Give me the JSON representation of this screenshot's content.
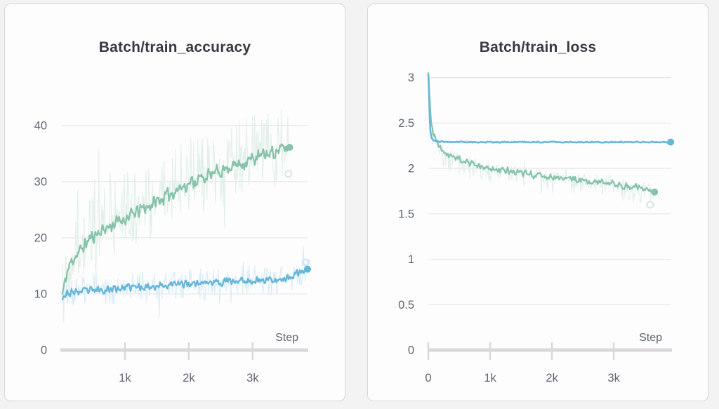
{
  "page": {
    "background": "#f3f3f4",
    "panel_background": "#fdfdfe",
    "panel_border": "#d7d7d9"
  },
  "chart_data": [
    {
      "type": "line",
      "title": "Batch/train_accuracy",
      "xlabel": "Step",
      "ylabel": "",
      "legend": "none",
      "grid": true,
      "x_range": [
        0,
        3860
      ],
      "y_range": [
        0,
        49.6
      ],
      "x_ticks": [
        {
          "value": 1000,
          "label": "1k"
        },
        {
          "value": 2000,
          "label": "2k"
        },
        {
          "value": 3000,
          "label": "3k"
        }
      ],
      "y_ticks": [
        {
          "value": 0,
          "label": "0",
          "grid": false
        },
        {
          "value": 10,
          "label": "10",
          "grid": true
        },
        {
          "value": 20,
          "label": "20",
          "grid": true
        },
        {
          "value": 30,
          "label": "30",
          "grid": true
        },
        {
          "value": 40,
          "label": "40",
          "grid": true
        }
      ],
      "axis_color": "#d9d9db",
      "grid_color": "#e7e7e9",
      "tick_label_color": "#5f6570",
      "series": [
        {
          "id": "green-run",
          "color": "#86c3aa",
          "raw_color": "#e2f0e9",
          "ghost_color": "#cde7da",
          "seed": 11,
          "x_start": 20,
          "x_end": 3580,
          "smooth_jitter": 1.5,
          "raw_jitter": 6.5,
          "raw_bias_up": 1.25,
          "raw_bias_down": 1.0,
          "line_width": 2.3,
          "end_dot": true,
          "ghost_dot": {
            "step": 3560,
            "value": 31.4
          },
          "smoothed": [
            [
              20,
              9.8
            ],
            [
              60,
              12
            ],
            [
              100,
              14
            ],
            [
              150,
              15.5
            ],
            [
              200,
              16.5
            ],
            [
              275,
              17.3
            ],
            [
              350,
              18.5
            ],
            [
              450,
              19.8
            ],
            [
              550,
              20.7
            ],
            [
              650,
              21.4
            ],
            [
              750,
              22
            ],
            [
              850,
              22.6
            ],
            [
              950,
              23.2
            ],
            [
              1050,
              23.7
            ],
            [
              1150,
              24.3
            ],
            [
              1250,
              25
            ],
            [
              1350,
              25.5
            ],
            [
              1450,
              26.2
            ],
            [
              1550,
              26.8
            ],
            [
              1650,
              27.4
            ],
            [
              1750,
              28.2
            ],
            [
              1850,
              28.8
            ],
            [
              1950,
              29.4
            ],
            [
              2050,
              30
            ],
            [
              2150,
              30.4
            ],
            [
              2250,
              30.8
            ],
            [
              2350,
              31.2
            ],
            [
              2450,
              31.7
            ],
            [
              2550,
              32.2
            ],
            [
              2650,
              32.7
            ],
            [
              2750,
              33
            ],
            [
              2850,
              33.4
            ],
            [
              2950,
              33.8
            ],
            [
              3050,
              34.2
            ],
            [
              3150,
              34.6
            ],
            [
              3250,
              35
            ],
            [
              3350,
              35.4
            ],
            [
              3450,
              35.8
            ],
            [
              3580,
              36.1
            ]
          ]
        },
        {
          "id": "blue-run",
          "color": "#66b6da",
          "raw_color": "#d9edf6",
          "ghost_color": "#c5e2f1",
          "seed": 23,
          "x_start": 20,
          "x_end": 3860,
          "smooth_jitter": 0.85,
          "raw_jitter": 2.8,
          "raw_bias_up": 1.0,
          "raw_bias_down": 1.0,
          "line_width": 2.3,
          "end_dot": true,
          "ghost_dot": {
            "step": 3835,
            "value": 15.6
          },
          "smoothed": [
            [
              20,
              9.6
            ],
            [
              100,
              10
            ],
            [
              200,
              10.3
            ],
            [
              400,
              10.5
            ],
            [
              700,
              10.8
            ],
            [
              1000,
              11.1
            ],
            [
              1300,
              11.3
            ],
            [
              1600,
              11.5
            ],
            [
              2000,
              11.9
            ],
            [
              2400,
              12.1
            ],
            [
              2800,
              12.3
            ],
            [
              3200,
              12.5
            ],
            [
              3500,
              12.7
            ],
            [
              3650,
              13.2
            ],
            [
              3750,
              13.9
            ],
            [
              3860,
              14.4
            ]
          ]
        }
      ]
    },
    {
      "type": "line",
      "title": "Batch/train_loss",
      "xlabel": "Step",
      "ylabel": "",
      "legend": "none",
      "grid": true,
      "x_range": [
        0,
        3930
      ],
      "y_range": [
        0,
        3.09
      ],
      "x_ticks": [
        {
          "value": 0,
          "label": "0"
        },
        {
          "value": 1000,
          "label": "1k"
        },
        {
          "value": 2000,
          "label": "2k"
        },
        {
          "value": 3000,
          "label": "3k"
        }
      ],
      "y_ticks": [
        {
          "value": 0,
          "label": "0",
          "grid": false
        },
        {
          "value": 0.5,
          "label": "0.5",
          "grid": true
        },
        {
          "value": 1,
          "label": "1",
          "grid": true
        },
        {
          "value": 1.5,
          "label": "1.5",
          "grid": true
        },
        {
          "value": 2,
          "label": "2",
          "grid": true
        },
        {
          "value": 2.5,
          "label": "2.5",
          "grid": true
        },
        {
          "value": 3,
          "label": "3",
          "grid": true
        }
      ],
      "axis_color": "#d9d9db",
      "grid_color": "#e7e7e9",
      "tick_label_color": "#5f6570",
      "series": [
        {
          "id": "green-run",
          "color": "#86c3aa",
          "raw_color": "#e2f0e9",
          "ghost_color": "#cde7da",
          "seed": 41,
          "x_start": 0,
          "x_end": 3660,
          "smooth_jitter": 0.045,
          "raw_jitter": 0.11,
          "raw_bias_up": 0.7,
          "raw_bias_down": 1.6,
          "line_width": 2.2,
          "end_dot": true,
          "ghost_dot": {
            "step": 3590,
            "value": 1.6
          },
          "smoothed": [
            [
              0,
              3.04
            ],
            [
              15,
              2.85
            ],
            [
              30,
              2.65
            ],
            [
              45,
              2.5
            ],
            [
              60,
              2.44
            ],
            [
              90,
              2.37
            ],
            [
              120,
              2.32
            ],
            [
              160,
              2.27
            ],
            [
              200,
              2.22
            ],
            [
              260,
              2.19
            ],
            [
              320,
              2.16
            ],
            [
              400,
              2.13
            ],
            [
              500,
              2.11
            ],
            [
              600,
              2.08
            ],
            [
              700,
              2.05
            ],
            [
              800,
              2.03
            ],
            [
              900,
              2.01
            ],
            [
              1000,
              1.99
            ],
            [
              1100,
              1.99
            ],
            [
              1200,
              1.98
            ],
            [
              1300,
              1.97
            ],
            [
              1400,
              1.96
            ],
            [
              1500,
              1.95
            ],
            [
              1600,
              1.94
            ],
            [
              1700,
              1.93
            ],
            [
              1800,
              1.93
            ],
            [
              1900,
              1.92
            ],
            [
              2000,
              1.9
            ],
            [
              2100,
              1.89
            ],
            [
              2200,
              1.89
            ],
            [
              2300,
              1.88
            ],
            [
              2400,
              1.88
            ],
            [
              2500,
              1.87
            ],
            [
              2600,
              1.85
            ],
            [
              2700,
              1.85
            ],
            [
              2800,
              1.84
            ],
            [
              2900,
              1.84
            ],
            [
              3000,
              1.83
            ],
            [
              3100,
              1.82
            ],
            [
              3200,
              1.81
            ],
            [
              3300,
              1.8
            ],
            [
              3400,
              1.79
            ],
            [
              3500,
              1.77
            ],
            [
              3580,
              1.76
            ],
            [
              3660,
              1.74
            ]
          ]
        },
        {
          "id": "blue-run",
          "color": "#66b6da",
          "raw_color": "#d9edf6",
          "ghost_color": "#c5e2f1",
          "seed": 57,
          "x_start": 0,
          "x_end": 3920,
          "smooth_jitter": 0.008,
          "raw_jitter": 0.015,
          "raw_bias_up": 1.0,
          "raw_bias_down": 1.0,
          "line_width": 2.5,
          "end_dot": true,
          "smoothed": [
            [
              0,
              3.04
            ],
            [
              8,
              2.95
            ],
            [
              18,
              2.62
            ],
            [
              30,
              2.43
            ],
            [
              50,
              2.34
            ],
            [
              80,
              2.31
            ],
            [
              150,
              2.295
            ],
            [
              600,
              2.29
            ],
            [
              1500,
              2.29
            ],
            [
              2500,
              2.29
            ],
            [
              3920,
              2.29
            ]
          ]
        }
      ]
    }
  ]
}
